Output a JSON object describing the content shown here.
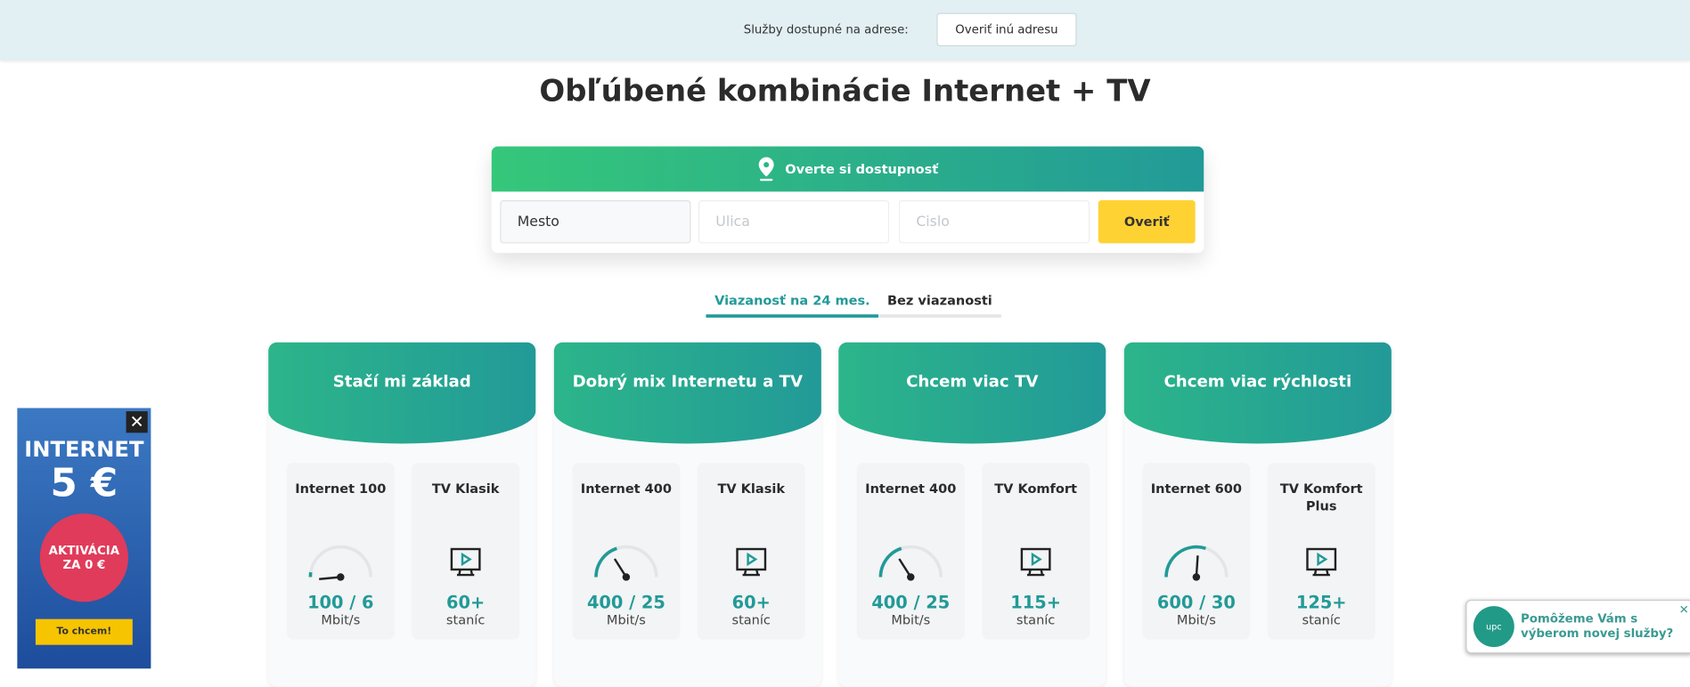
{
  "topbar": {
    "label": "Služby dostupné na adrese:",
    "button": "Overiť inú adresu"
  },
  "title": "Obľúbené kombinácie Internet + TV",
  "availability": {
    "header": "Overte si dostupnosť",
    "city_value": "Mesto",
    "street_placeholder": "Ulica",
    "number_placeholder": "Čislo",
    "submit": "Overiť"
  },
  "tabs": [
    {
      "label": "Viazanosť na 24 mes.",
      "active": true
    },
    {
      "label": "Bez viazanosti",
      "active": false
    }
  ],
  "accent": "#229a98",
  "cards": [
    {
      "title": "Stačí mi základ",
      "internet": {
        "name": "Internet 100",
        "value": "100 / 6",
        "unit": "Mbit/s",
        "gauge": 0.05
      },
      "tv": {
        "name": "TV Klasik",
        "value": "60+",
        "unit": "staníc"
      }
    },
    {
      "title": "Dobrý mix Internetu a TV",
      "internet": {
        "name": "Internet 400",
        "value": "400 / 25",
        "unit": "Mbit/s",
        "gauge": 0.4
      },
      "tv": {
        "name": "TV Klasik",
        "value": "60+",
        "unit": "staníc"
      }
    },
    {
      "title": "Chcem viac TV",
      "internet": {
        "name": "Internet 400",
        "value": "400 / 25",
        "unit": "Mbit/s",
        "gauge": 0.4
      },
      "tv": {
        "name": "TV Komfort",
        "value": "115+",
        "unit": "staníc"
      }
    },
    {
      "title": "Chcem viac rýchlosti",
      "internet": {
        "name": "Internet 600",
        "value": "600 / 30",
        "unit": "Mbit/s",
        "gauge": 0.6
      },
      "tv": {
        "name": "TV Komfort Plus",
        "value": "125+",
        "unit": "staníc"
      }
    }
  ],
  "ad": {
    "line1": "INTERNET",
    "line2": "5 €",
    "badge1": "AKTIVÁCIA",
    "badge2": "ZA 0 €",
    "cta": "To chcem!"
  },
  "chat": {
    "text": "Pomôžeme Vám s výberom novej služby?",
    "logo": "upc"
  }
}
